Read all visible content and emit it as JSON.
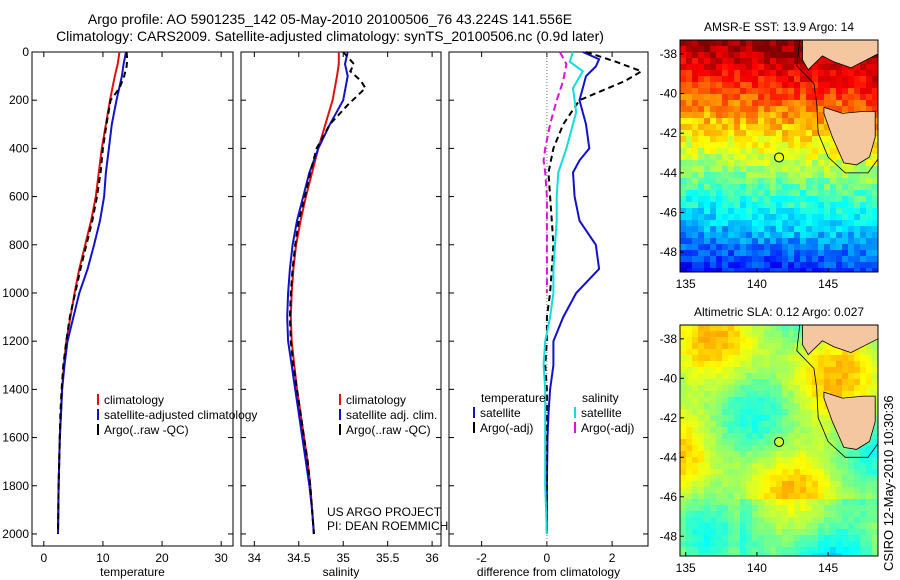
{
  "header": {
    "line1": "Argo profile: AO 5901235_142 05-May-2010 20100506_76 43.224S 141.556E",
    "line2": "Climatology: CARS2009. Satellite-adjusted climatology: synTS_20100506.nc (0.9d later)"
  },
  "credit": "CSIRO 12-May-2010 10:30:36",
  "project_note": [
    "US ARGO PROJECT",
    "PI: DEAN ROEMMICH"
  ],
  "colors": {
    "climatology": "#dd1111",
    "satellite": "#1111cc",
    "argo": "#000000",
    "salinity_sat": "#11dddd",
    "salinity_argo": "#dd11dd",
    "zero_line": "#777777"
  },
  "chart_data": [
    {
      "type": "line",
      "xlabel": "temperature",
      "xlim": [
        -2,
        32
      ],
      "xticks": [
        0,
        10,
        20,
        30
      ],
      "ylim": [
        2050,
        0
      ],
      "yticks": [
        0,
        200,
        400,
        600,
        800,
        1000,
        1200,
        1400,
        1600,
        1800,
        2000
      ],
      "legend": [
        "climatology",
        "satellite-adjusted climatology",
        "Argo(..raw -QC)"
      ],
      "legend_position": "lower-right",
      "series": [
        {
          "name": "climatology",
          "color": "#dd1111",
          "dash": "",
          "points": [
            [
              12.8,
              0
            ],
            [
              12.5,
              50
            ],
            [
              12.0,
              100
            ],
            [
              11.2,
              200
            ],
            [
              10.5,
              300
            ],
            [
              9.8,
              400
            ],
            [
              9.3,
              500
            ],
            [
              8.8,
              600
            ],
            [
              8.0,
              700
            ],
            [
              7.0,
              800
            ],
            [
              6.0,
              900
            ],
            [
              5.2,
              1000
            ],
            [
              4.5,
              1100
            ],
            [
              3.8,
              1200
            ],
            [
              3.4,
              1300
            ],
            [
              3.1,
              1400
            ],
            [
              2.9,
              1500
            ],
            [
              2.7,
              1600
            ],
            [
              2.6,
              1700
            ],
            [
              2.5,
              1800
            ],
            [
              2.45,
              1900
            ],
            [
              2.4,
              2000
            ]
          ]
        },
        {
          "name": "satellite-adjusted climatology",
          "color": "#1111cc",
          "dash": "",
          "points": [
            [
              13.9,
              0
            ],
            [
              13.5,
              50
            ],
            [
              13.2,
              100
            ],
            [
              12.3,
              200
            ],
            [
              11.5,
              300
            ],
            [
              11.0,
              400
            ],
            [
              10.5,
              500
            ],
            [
              10.2,
              600
            ],
            [
              9.5,
              700
            ],
            [
              8.5,
              800
            ],
            [
              7.4,
              900
            ],
            [
              6.0,
              1000
            ],
            [
              5.0,
              1100
            ],
            [
              4.0,
              1200
            ],
            [
              3.5,
              1300
            ],
            [
              3.1,
              1400
            ],
            [
              2.9,
              1500
            ],
            [
              2.7,
              1600
            ],
            [
              2.6,
              1700
            ],
            [
              2.5,
              1800
            ],
            [
              2.45,
              1900
            ],
            [
              2.4,
              2000
            ]
          ]
        },
        {
          "name": "Argo(..raw -QC)",
          "color": "#000000",
          "dash": "6,4",
          "points": [
            [
              14.0,
              0
            ],
            [
              14.1,
              30
            ],
            [
              14.0,
              60
            ],
            [
              13.6,
              100
            ],
            [
              12.8,
              150
            ],
            [
              11.3,
              200
            ],
            [
              10.6,
              300
            ],
            [
              10.0,
              400
            ],
            [
              9.6,
              500
            ],
            [
              9.0,
              600
            ],
            [
              8.2,
              700
            ],
            [
              7.2,
              800
            ],
            [
              6.2,
              900
            ],
            [
              5.3,
              1000
            ],
            [
              4.4,
              1100
            ],
            [
              3.8,
              1200
            ],
            [
              3.3,
              1300
            ],
            [
              3.0,
              1400
            ],
            [
              2.8,
              1500
            ],
            [
              2.7,
              1600
            ],
            [
              2.6,
              1700
            ],
            [
              2.5,
              1800
            ],
            [
              2.45,
              1900
            ],
            [
              2.4,
              2000
            ]
          ]
        }
      ]
    },
    {
      "type": "line",
      "xlabel": "salinity",
      "xlim": [
        33.85,
        36.1
      ],
      "xticks": [
        34,
        34.5,
        35,
        35.5,
        36
      ],
      "ylim": [
        2050,
        0
      ],
      "legend": [
        "climatology",
        "satellite adj. clim.",
        "Argo(..raw -QC)"
      ],
      "legend_position": "lower-right",
      "series": [
        {
          "name": "climatology",
          "color": "#dd1111",
          "dash": "",
          "points": [
            [
              34.95,
              0
            ],
            [
              34.95,
              50
            ],
            [
              34.93,
              100
            ],
            [
              34.88,
              200
            ],
            [
              34.8,
              300
            ],
            [
              34.72,
              400
            ],
            [
              34.65,
              500
            ],
            [
              34.58,
              600
            ],
            [
              34.52,
              700
            ],
            [
              34.47,
              800
            ],
            [
              34.44,
              900
            ],
            [
              34.42,
              1000
            ],
            [
              34.41,
              1100
            ],
            [
              34.42,
              1200
            ],
            [
              34.45,
              1300
            ],
            [
              34.48,
              1400
            ],
            [
              34.52,
              1500
            ],
            [
              34.56,
              1600
            ],
            [
              34.6,
              1700
            ],
            [
              34.63,
              1800
            ],
            [
              34.65,
              1900
            ],
            [
              34.67,
              2000
            ]
          ]
        },
        {
          "name": "satellite adj. clim.",
          "color": "#1111cc",
          "dash": "",
          "points": [
            [
              35.05,
              0
            ],
            [
              35.02,
              50
            ],
            [
              35.05,
              100
            ],
            [
              35.0,
              200
            ],
            [
              34.85,
              300
            ],
            [
              34.72,
              400
            ],
            [
              34.62,
              500
            ],
            [
              34.55,
              600
            ],
            [
              34.48,
              700
            ],
            [
              34.43,
              800
            ],
            [
              34.4,
              900
            ],
            [
              34.38,
              1000
            ],
            [
              34.37,
              1100
            ],
            [
              34.38,
              1200
            ],
            [
              34.42,
              1300
            ],
            [
              34.46,
              1400
            ],
            [
              34.5,
              1500
            ],
            [
              34.54,
              1600
            ],
            [
              34.58,
              1700
            ],
            [
              34.62,
              1800
            ],
            [
              34.65,
              1900
            ],
            [
              34.67,
              2000
            ]
          ]
        },
        {
          "name": "Argo(..raw -QC)",
          "color": "#000000",
          "dash": "6,4",
          "points": [
            [
              35.0,
              0
            ],
            [
              35.12,
              50
            ],
            [
              35.08,
              80
            ],
            [
              35.2,
              120
            ],
            [
              35.25,
              150
            ],
            [
              35.05,
              220
            ],
            [
              34.85,
              300
            ],
            [
              34.7,
              400
            ],
            [
              34.63,
              500
            ],
            [
              34.57,
              600
            ],
            [
              34.5,
              700
            ],
            [
              34.46,
              800
            ],
            [
              34.43,
              900
            ],
            [
              34.41,
              1000
            ],
            [
              34.4,
              1100
            ],
            [
              34.41,
              1200
            ],
            [
              34.44,
              1300
            ],
            [
              34.48,
              1400
            ],
            [
              34.52,
              1500
            ],
            [
              34.56,
              1600
            ],
            [
              34.6,
              1700
            ],
            [
              34.63,
              1800
            ],
            [
              34.65,
              1900
            ],
            [
              34.67,
              2000
            ]
          ]
        }
      ]
    },
    {
      "type": "line",
      "xlabel": "difference from climatology",
      "xlim": [
        -3,
        3.1
      ],
      "xticks": [
        -2,
        0,
        2
      ],
      "ylim": [
        2050,
        0
      ],
      "legend_temperature": {
        "title": "temperature",
        "entries": [
          "satellite",
          "Argo(-adj)"
        ]
      },
      "legend_salinity": {
        "title": "salinity",
        "entries": [
          "satellite",
          "Argo(-adj)"
        ]
      },
      "series": [
        {
          "name": "temperature satellite",
          "color": "#1111cc",
          "dash": "",
          "points": [
            [
              1.1,
              0
            ],
            [
              1.6,
              30
            ],
            [
              1.5,
              60
            ],
            [
              1.2,
              100
            ],
            [
              1.0,
              200
            ],
            [
              1.2,
              300
            ],
            [
              1.3,
              400
            ],
            [
              1.0,
              450
            ],
            [
              0.8,
              500
            ],
            [
              0.85,
              600
            ],
            [
              1.0,
              700
            ],
            [
              1.5,
              800
            ],
            [
              1.6,
              900
            ],
            [
              0.9,
              1000
            ],
            [
              0.5,
              1100
            ],
            [
              0.2,
              1200
            ],
            [
              0.2,
              1300
            ],
            [
              0.1,
              1400
            ],
            [
              0.05,
              1500
            ],
            [
              0.02,
              1600
            ],
            [
              0.0,
              1800
            ],
            [
              0.0,
              2000
            ]
          ]
        },
        {
          "name": "temperature Argo(-adj)",
          "color": "#000000",
          "dash": "6,4",
          "points": [
            [
              1.2,
              0
            ],
            [
              2.1,
              40
            ],
            [
              2.9,
              80
            ],
            [
              2.4,
              120
            ],
            [
              1.0,
              200
            ],
            [
              0.5,
              300
            ],
            [
              0.2,
              400
            ],
            [
              0.05,
              500
            ],
            [
              0.1,
              600
            ],
            [
              0.15,
              700
            ],
            [
              0.2,
              800
            ],
            [
              0.15,
              900
            ],
            [
              0.1,
              1000
            ],
            [
              0.0,
              1100
            ],
            [
              0.0,
              1200
            ],
            [
              -0.05,
              1300
            ],
            [
              0.0,
              1400
            ],
            [
              0.0,
              1600
            ],
            [
              0.0,
              1800
            ],
            [
              0.0,
              2000
            ]
          ]
        },
        {
          "name": "salinity satellite",
          "color": "#11dddd",
          "dash": "",
          "points": [
            [
              0.8,
              0
            ],
            [
              0.7,
              40
            ],
            [
              1.1,
              80
            ],
            [
              0.8,
              150
            ],
            [
              0.9,
              250
            ],
            [
              0.7,
              350
            ],
            [
              0.6,
              400
            ],
            [
              0.35,
              500
            ],
            [
              0.3,
              600
            ],
            [
              0.3,
              700
            ],
            [
              0.25,
              800
            ],
            [
              0.2,
              900
            ],
            [
              0.2,
              1000
            ],
            [
              0.1,
              1100
            ],
            [
              -0.05,
              1200
            ],
            [
              -0.1,
              1300
            ],
            [
              -0.05,
              1400
            ],
            [
              -0.05,
              1500
            ],
            [
              -0.05,
              1600
            ],
            [
              -0.05,
              1800
            ],
            [
              0.0,
              2000
            ]
          ]
        },
        {
          "name": "salinity Argo(-adj)",
          "color": "#dd11dd",
          "dash": "7,4",
          "points": [
            [
              0.4,
              0
            ],
            [
              0.6,
              50
            ],
            [
              0.5,
              120
            ],
            [
              0.3,
              200
            ],
            [
              0.1,
              300
            ],
            [
              -0.05,
              400
            ],
            [
              -0.1,
              450
            ],
            [
              -0.05,
              500
            ],
            [
              0.0,
              600
            ],
            [
              0.0,
              700
            ],
            [
              0.0,
              800
            ],
            [
              0.0,
              900
            ],
            [
              0.0,
              1000
            ]
          ]
        }
      ]
    },
    {
      "type": "heatmap",
      "title": "AMSR-E SST: 13.9 Argo: 14",
      "xticks": [
        135,
        140,
        145
      ],
      "yticks": [
        -38,
        -40,
        -42,
        -44,
        -46,
        -48
      ],
      "xlim": [
        134.6,
        148.5
      ],
      "ylim": [
        -49.0,
        -37.3
      ],
      "marker": [
        141.556,
        -43.224
      ],
      "colormap": "jet"
    },
    {
      "type": "heatmap",
      "title": "Altimetric SLA: 0.12 Argo: 0.027",
      "xticks": [
        135,
        140,
        145
      ],
      "yticks": [
        -38,
        -40,
        -42,
        -44,
        -46,
        -48
      ],
      "xlim": [
        134.6,
        148.5
      ],
      "ylim": [
        -49.0,
        -37.3
      ],
      "marker": [
        141.556,
        -43.224
      ],
      "colormap": "jet"
    }
  ]
}
